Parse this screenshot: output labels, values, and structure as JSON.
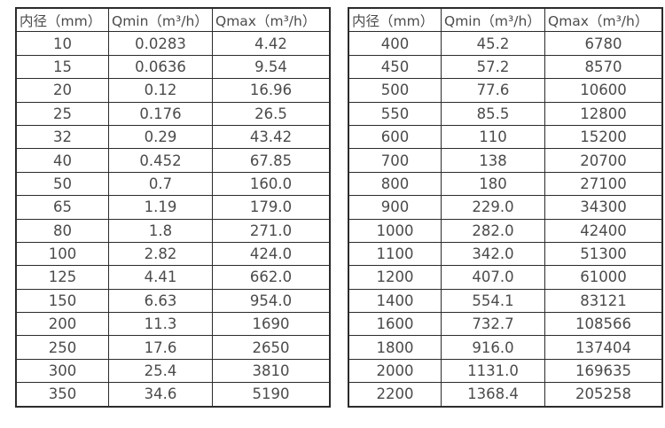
{
  "colors": {
    "background": "#ffffff",
    "border": "#2b2b2b",
    "text": "#4b4b4b"
  },
  "tables": [
    {
      "name": "flow-rate-table-small-diameters",
      "headers": [
        "内径（mm）",
        "Qmin（m³/h）",
        "Qmax（m³/h）"
      ],
      "rows": [
        [
          "10",
          "0.0283",
          "4.42"
        ],
        [
          "15",
          "0.0636",
          "9.54"
        ],
        [
          "20",
          "0.12",
          "16.96"
        ],
        [
          "25",
          "0.176",
          "26.5"
        ],
        [
          "32",
          "0.29",
          "43.42"
        ],
        [
          "40",
          "0.452",
          "67.85"
        ],
        [
          "50",
          "0.7",
          "160.0"
        ],
        [
          "65",
          "1.19",
          "179.0"
        ],
        [
          "80",
          "1.8",
          "271.0"
        ],
        [
          "100",
          "2.82",
          "424.0"
        ],
        [
          "125",
          "4.41",
          "662.0"
        ],
        [
          "150",
          "6.63",
          "954.0"
        ],
        [
          "200",
          "11.3",
          "1690"
        ],
        [
          "250",
          "17.6",
          "2650"
        ],
        [
          "300",
          "25.4",
          "3810"
        ],
        [
          "350",
          "34.6",
          "5190"
        ]
      ]
    },
    {
      "name": "flow-rate-table-large-diameters",
      "headers": [
        "内径（mm）",
        "Qmin（m³/h）",
        "Qmax（m³/h）"
      ],
      "rows": [
        [
          "400",
          "45.2",
          "6780"
        ],
        [
          "450",
          "57.2",
          "8570"
        ],
        [
          "500",
          "77.6",
          "10600"
        ],
        [
          "550",
          "85.5",
          "12800"
        ],
        [
          "600",
          "110",
          "15200"
        ],
        [
          "700",
          "138",
          "20700"
        ],
        [
          "800",
          "180",
          "27100"
        ],
        [
          "900",
          "229.0",
          "34300"
        ],
        [
          "1000",
          "282.0",
          "42400"
        ],
        [
          "1100",
          "342.0",
          "51300"
        ],
        [
          "1200",
          "407.0",
          "61000"
        ],
        [
          "1400",
          "554.1",
          "83121"
        ],
        [
          "1600",
          "732.7",
          "108566"
        ],
        [
          "1800",
          "916.0",
          "137404"
        ],
        [
          "2000",
          "1131.0",
          "169635"
        ],
        [
          "2200",
          "1368.4",
          "205258"
        ]
      ]
    }
  ]
}
